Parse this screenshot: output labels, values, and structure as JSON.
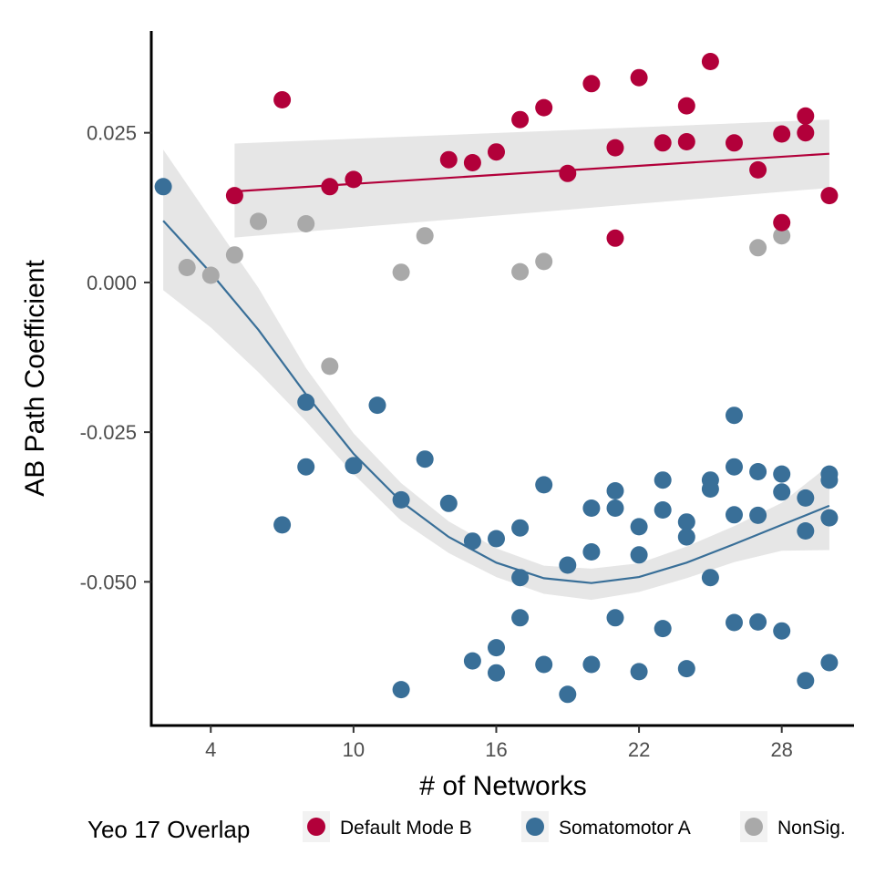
{
  "chart_data": {
    "type": "scatter",
    "xlabel": "# of Networks",
    "ylabel": "AB Path Coefficient",
    "xlim": [
      1.5,
      31.0
    ],
    "ylim": [
      -0.074,
      0.042
    ],
    "xticks": [
      4,
      10,
      16,
      22,
      28
    ],
    "yticks": [
      0.025,
      0.0,
      -0.025,
      -0.05
    ],
    "ytick_labels": [
      "0.025",
      "0.000",
      "-0.025",
      "-0.050"
    ],
    "grid": false,
    "legend": {
      "title": "Yeo 17 Overlap",
      "position": "bottom",
      "entries": [
        "Default Mode B",
        "Somatomotor A",
        "NonSig."
      ]
    },
    "series": [
      {
        "name": "Default Mode B",
        "color": "#b2003a",
        "points": [
          [
            5,
            0.0145
          ],
          [
            7,
            0.0305
          ],
          [
            9,
            0.016
          ],
          [
            10,
            0.0172
          ],
          [
            14,
            0.0205
          ],
          [
            15,
            0.02
          ],
          [
            16,
            0.0218
          ],
          [
            17,
            0.0272
          ],
          [
            18,
            0.0292
          ],
          [
            19,
            0.0182
          ],
          [
            20,
            0.0332
          ],
          [
            21,
            0.0225
          ],
          [
            21,
            0.0074
          ],
          [
            22,
            0.0342
          ],
          [
            23,
            0.0233
          ],
          [
            24,
            0.0235
          ],
          [
            24,
            0.0295
          ],
          [
            25,
            0.0369
          ],
          [
            26,
            0.0233
          ],
          [
            27,
            0.0188
          ],
          [
            28,
            0.0248
          ],
          [
            28,
            0.01
          ],
          [
            29,
            0.0278
          ],
          [
            29,
            0.025
          ],
          [
            30,
            0.0145
          ]
        ],
        "fit": {
          "x": [
            5,
            30
          ],
          "y": [
            0.0152,
            0.0215
          ],
          "band_upper": [
            0.0232,
            0.0272
          ],
          "band_lower": [
            0.0075,
            0.0158
          ]
        }
      },
      {
        "name": "Somatomotor A",
        "color": "#396f98",
        "points": [
          [
            2,
            0.016
          ],
          [
            7,
            -0.0405
          ],
          [
            8,
            -0.02
          ],
          [
            8,
            -0.0308
          ],
          [
            10,
            -0.0306
          ],
          [
            11,
            -0.0205
          ],
          [
            12,
            -0.0363
          ],
          [
            12,
            -0.068
          ],
          [
            13,
            -0.0295
          ],
          [
            14,
            -0.0369
          ],
          [
            15,
            -0.0432
          ],
          [
            15,
            -0.0632
          ],
          [
            16,
            -0.0428
          ],
          [
            16,
            -0.061
          ],
          [
            16,
            -0.0652
          ],
          [
            17,
            -0.041
          ],
          [
            17,
            -0.0493
          ],
          [
            17,
            -0.056
          ],
          [
            18,
            -0.0338
          ],
          [
            18,
            -0.0638
          ],
          [
            19,
            -0.0472
          ],
          [
            19,
            -0.0688
          ],
          [
            20,
            -0.0377
          ],
          [
            20,
            -0.045
          ],
          [
            20,
            -0.0638
          ],
          [
            21,
            -0.0348
          ],
          [
            21,
            -0.0377
          ],
          [
            21,
            -0.056
          ],
          [
            22,
            -0.0408
          ],
          [
            22,
            -0.0455
          ],
          [
            22,
            -0.065
          ],
          [
            23,
            -0.033
          ],
          [
            23,
            -0.038
          ],
          [
            23,
            -0.0578
          ],
          [
            24,
            -0.04
          ],
          [
            24,
            -0.0425
          ],
          [
            24,
            -0.0645
          ],
          [
            25,
            -0.033
          ],
          [
            25,
            -0.0345
          ],
          [
            25,
            -0.0493
          ],
          [
            26,
            -0.0222
          ],
          [
            26,
            -0.0308
          ],
          [
            26,
            -0.0388
          ],
          [
            26,
            -0.0568
          ],
          [
            27,
            -0.0316
          ],
          [
            27,
            -0.0389
          ],
          [
            27,
            -0.0567
          ],
          [
            28,
            -0.032
          ],
          [
            28,
            -0.035
          ],
          [
            28,
            -0.0582
          ],
          [
            29,
            -0.036
          ],
          [
            29,
            -0.0415
          ],
          [
            29,
            -0.0665
          ],
          [
            30,
            -0.032
          ],
          [
            30,
            -0.033
          ],
          [
            30,
            -0.0393
          ],
          [
            30,
            -0.0635
          ]
        ],
        "fit": {
          "x": [
            2,
            4,
            6,
            8,
            10,
            12,
            14,
            16,
            18,
            20,
            22,
            24,
            26,
            28,
            30
          ],
          "y": [
            0.0103,
            0.0016,
            -0.0079,
            -0.0187,
            -0.0286,
            -0.0366,
            -0.0425,
            -0.0468,
            -0.0494,
            -0.0502,
            -0.0492,
            -0.0468,
            -0.0437,
            -0.0405,
            -0.0373
          ],
          "band_upper": [
            0.0222,
            0.0106,
            -0.0009,
            -0.0143,
            -0.0252,
            -0.0335,
            -0.0399,
            -0.0444,
            -0.0473,
            -0.0478,
            -0.0469,
            -0.0441,
            -0.0407,
            -0.0368,
            -0.0305
          ],
          "band_lower": [
            -0.0013,
            -0.0075,
            -0.015,
            -0.0232,
            -0.032,
            -0.0398,
            -0.0452,
            -0.0492,
            -0.052,
            -0.053,
            -0.0517,
            -0.0494,
            -0.0467,
            -0.0448,
            -0.0447
          ]
        }
      },
      {
        "name": "NonSig.",
        "color": "#a9a9a9",
        "points": [
          [
            3,
            0.0025
          ],
          [
            4,
            0.0012
          ],
          [
            5,
            0.0046
          ],
          [
            6,
            0.0102
          ],
          [
            8,
            0.0098
          ],
          [
            9,
            -0.014
          ],
          [
            12,
            0.0017
          ],
          [
            13,
            0.0078
          ],
          [
            17,
            0.0018
          ],
          [
            18,
            0.0035
          ],
          [
            27,
            0.0058
          ],
          [
            28,
            0.0078
          ]
        ]
      }
    ],
    "band_color": "#e6e6e6"
  }
}
